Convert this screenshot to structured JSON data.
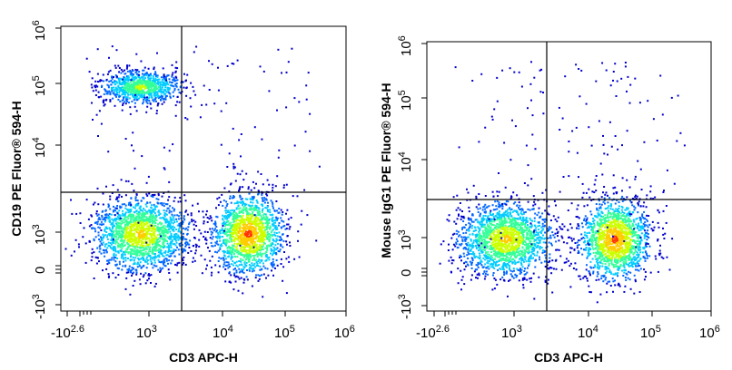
{
  "chart_data": [
    {
      "type": "scatter",
      "style": "flow-cytometry pseudocolor density plot",
      "xlabel": "CD3 APC-H",
      "ylabel": "CD19 PE Fluor® 594-H",
      "x_scale": "biexponential",
      "y_scale": "biexponential",
      "x_tick_labels": [
        "-10^2.6",
        "10^3",
        "10^4",
        "10^5",
        "10^6"
      ],
      "y_tick_labels": [
        "-10^3",
        "0",
        "10^3",
        "10^4",
        "10^5",
        "10^6"
      ],
      "gate": {
        "x": 3000,
        "y": 2000
      },
      "populations": [
        {
          "name": "",
          "x": 350,
          "y": 90000,
          "density": "medium"
        },
        {
          "name": "",
          "x": 350,
          "y": 800,
          "density": "high"
        },
        {
          "name": "",
          "x": 25000,
          "y": 800,
          "density": "very high"
        }
      ]
    },
    {
      "type": "scatter",
      "style": "flow-cytometry pseudocolor density plot",
      "xlabel": "CD3 APC-H",
      "ylabel": "Mouse IgG1 PE Fluor® 594-H",
      "x_scale": "biexponential",
      "y_scale": "biexponential",
      "x_tick_labels": [
        "-10^2.6",
        "10^3",
        "10^4",
        "10^5",
        "10^6"
      ],
      "y_tick_labels": [
        "-10^3",
        "0",
        "10^3",
        "10^4",
        "10^5",
        "10^6"
      ],
      "gate": {
        "x": 3000,
        "y": 2000
      },
      "populations": [
        {
          "name": "",
          "x": 350,
          "y": 800,
          "density": "high"
        },
        {
          "name": "",
          "x": 25000,
          "y": 800,
          "density": "very high"
        }
      ]
    }
  ],
  "colors": {
    "density_scale": [
      "#0000cc",
      "#0066ff",
      "#00ccff",
      "#33ff99",
      "#ccff00",
      "#ffcc00",
      "#ff3300"
    ],
    "gate_line": "#000000"
  }
}
